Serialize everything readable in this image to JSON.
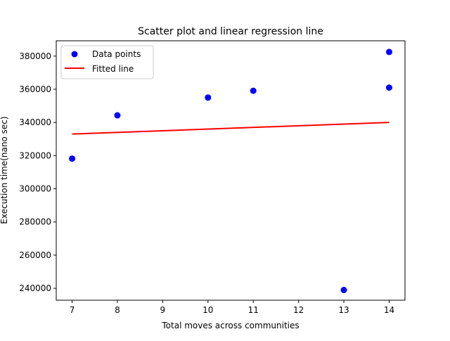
{
  "chart_data": {
    "type": "scatter",
    "title": "Scatter plot and linear regression line",
    "xlabel": "Total moves across communities",
    "ylabel": "Execution time(nano sec)",
    "xlim": [
      6.65,
      14.35
    ],
    "ylim": [
      232826,
      389232
    ],
    "xticks": [
      7,
      8,
      9,
      10,
      11,
      12,
      13,
      14
    ],
    "yticks": [
      240000,
      260000,
      280000,
      300000,
      320000,
      340000,
      360000,
      380000
    ],
    "grid": false,
    "legend_location": "upper left",
    "series": [
      {
        "name": "Data points",
        "kind": "scatter",
        "color": "#0000ff",
        "x": [
          7,
          8,
          10,
          11,
          13,
          14,
          14
        ],
        "y": [
          318200,
          344300,
          355000,
          359100,
          239000,
          361000,
          382500
        ]
      },
      {
        "name": "Fitted line",
        "kind": "line",
        "color": "#ff0000",
        "x": [
          7,
          14
        ],
        "y": [
          333000,
          340000
        ]
      }
    ]
  }
}
